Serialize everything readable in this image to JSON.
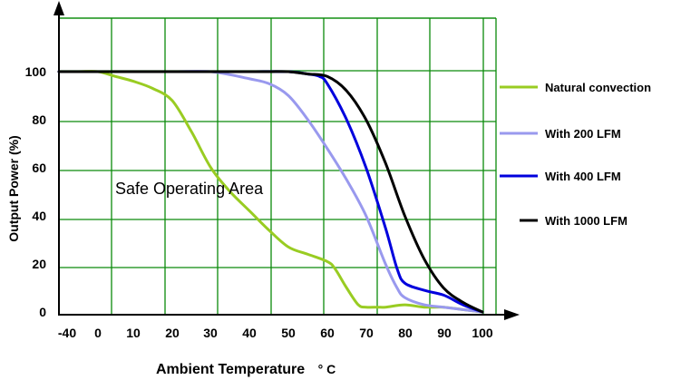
{
  "chart_data": {
    "type": "line",
    "xlabel": "Ambient Temperature",
    "xunit": "° C",
    "ylabel": "Output Power (%)",
    "x_tick_labels": [
      "-40",
      "0",
      "10",
      "20",
      "30",
      "40",
      "50",
      "60",
      "70",
      "80",
      "90",
      "100"
    ],
    "y_tick_labels": [
      "0",
      "20",
      "40",
      "60",
      "80",
      "100"
    ],
    "ylim": [
      0,
      100
    ],
    "grid": true,
    "legend_position": "right",
    "annotation": "Safe Operating Area",
    "series": [
      {
        "name": "Natural convection",
        "color": "#99cc22",
        "x": [
          -40,
          -20,
          0,
          5,
          10,
          15,
          20,
          25,
          30,
          35,
          40,
          45,
          50,
          55,
          60,
          62,
          65,
          68,
          70,
          73,
          75,
          80,
          85,
          90,
          95,
          100
        ],
        "y": [
          100,
          100,
          100,
          98,
          96,
          93,
          88,
          75,
          60,
          50,
          42,
          34,
          27,
          24,
          21,
          18,
          10,
          3,
          2,
          2,
          2,
          3,
          2,
          2,
          1,
          0
        ]
      },
      {
        "name": "With 200 LFM",
        "color": "#9999ee",
        "x": [
          -40,
          0,
          10,
          20,
          30,
          40,
          45,
          50,
          55,
          60,
          65,
          70,
          75,
          78,
          80,
          85,
          90,
          95,
          100
        ],
        "y": [
          100,
          100,
          100,
          100,
          100,
          97,
          95,
          90,
          80,
          68,
          55,
          40,
          20,
          10,
          6,
          3,
          2,
          1,
          0
        ]
      },
      {
        "name": "With 400 LFM",
        "color": "#0000dd",
        "x": [
          -40,
          0,
          10,
          20,
          30,
          40,
          50,
          55,
          58,
          60,
          65,
          70,
          75,
          78,
          80,
          85,
          90,
          95,
          100
        ],
        "y": [
          100,
          100,
          100,
          100,
          100,
          100,
          100,
          99,
          98,
          95,
          80,
          60,
          35,
          18,
          12,
          9,
          7,
          3,
          0
        ]
      },
      {
        "name": "With 1000 LFM",
        "color": "#000000",
        "x": [
          -40,
          0,
          10,
          20,
          30,
          40,
          45,
          50,
          55,
          60,
          65,
          70,
          75,
          80,
          85,
          90,
          95,
          100
        ],
        "y": [
          100,
          100,
          100,
          100,
          100,
          100,
          100,
          100,
          99,
          98,
          92,
          80,
          62,
          40,
          22,
          10,
          4,
          0
        ]
      }
    ]
  }
}
